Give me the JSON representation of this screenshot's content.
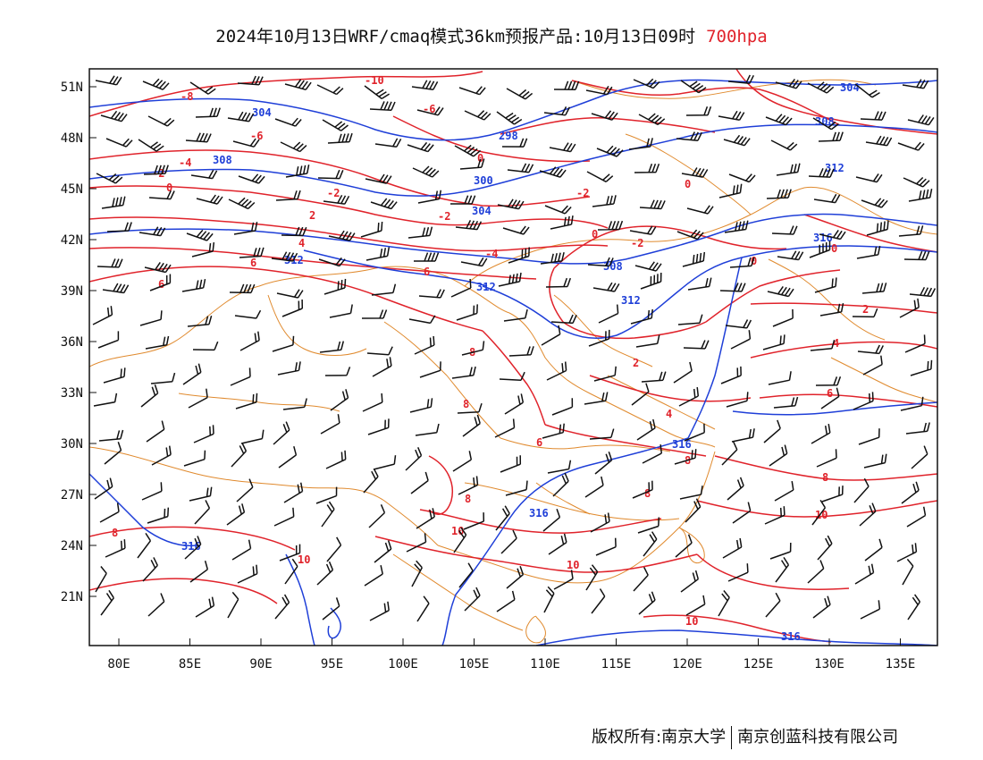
{
  "title": {
    "main": "2024年10月13日WRF/cmaq模式36km预报产品:10月13日09时",
    "level": "700hpa"
  },
  "axes": {
    "lat_labels": [
      "51N",
      "48N",
      "45N",
      "42N",
      "39N",
      "36N",
      "33N",
      "30N",
      "27N",
      "24N",
      "21N"
    ],
    "lon_labels": [
      "80E",
      "85E",
      "90E",
      "95E",
      "100E",
      "105E",
      "110E",
      "115E",
      "120E",
      "125E",
      "130E",
      "135E"
    ]
  },
  "footer": {
    "copyright": "版权所有:南京大学",
    "company": "南京创蓝科技有限公司"
  },
  "colors": {
    "height_contour": "#1f3fd8",
    "temperature_contour": "#e0232b",
    "boundary": "#e08a2e",
    "wind_barb": "#111111"
  },
  "contour_labels": {
    "height": [
      "304",
      "304",
      "308",
      "308",
      "312",
      "298",
      "300",
      "304",
      "312",
      "308",
      "312",
      "312",
      "316",
      "316",
      "316",
      "316",
      "316"
    ],
    "temperature": [
      "-10",
      "-8",
      "-6",
      "-6",
      "-4",
      "-4",
      "-2",
      "-2",
      "-2",
      "-2",
      "-2",
      "0",
      "0",
      "0",
      "0",
      "0",
      "0",
      "2",
      "2",
      "2",
      "4",
      "4",
      "4",
      "6",
      "6",
      "6",
      "6",
      "6",
      "8",
      "8",
      "8",
      "8",
      "8",
      "8",
      "8",
      "10",
      "10",
      "10",
      "10",
      "10"
    ]
  }
}
